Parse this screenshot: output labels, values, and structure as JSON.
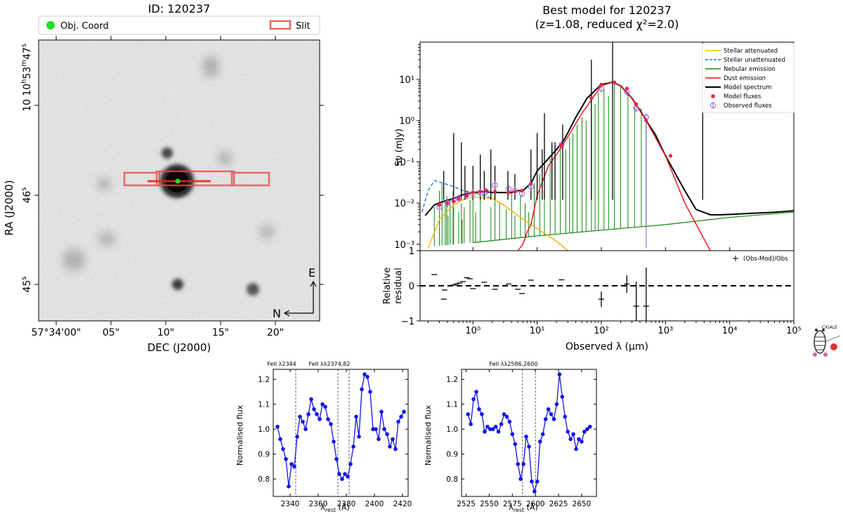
{
  "image_panel": {
    "title": "ID: 120237",
    "legend": {
      "object_label": "Obj. Coord",
      "slit_label": "Slit"
    },
    "y_label": "RA (J2000)",
    "x_label": "DEC (J2000)",
    "y_ticks": [
      {
        "base": "10",
        "sup1": "h",
        "mid": "53",
        "sup2": "m",
        "tail": "47",
        "sup3": "s"
      },
      {
        "base": "10",
        "sup1": "",
        "mid": "",
        "sup2": "",
        "tail": "",
        "sup3": ""
      },
      {
        "base": "46",
        "sup1": "s",
        "mid": "",
        "sup2": "",
        "tail": "",
        "sup3": ""
      },
      {
        "base": "45",
        "sup1": "s",
        "mid": "",
        "sup2": "",
        "tail": "",
        "sup3": ""
      }
    ],
    "x_ticks": [
      "57°34'00\"",
      "05\"",
      "10\"",
      "15\"",
      "20\""
    ],
    "compass": {
      "north": "N",
      "east": "E"
    },
    "colors": {
      "object": "#22dd22",
      "slit": "#e84a4a"
    }
  },
  "sed_panel": {
    "title_line1": "Best model for 120237",
    "title_line2": "(z=1.08, reduced χ²=2.0)",
    "y_label": "Sν (mJy)",
    "x_label": "Observed λ (μm)",
    "residual_label_line1": "Relative",
    "residual_label_line2": "residual",
    "residual_legend": "(Obs-Mod)/Obs",
    "legend": [
      {
        "label": "Stellar attenuated",
        "color": "#f5b800",
        "style": "solid"
      },
      {
        "label": "Stellar unattenuated",
        "color": "#1f77d4",
        "style": "dashed"
      },
      {
        "label": "Nebular emission",
        "color": "#118811",
        "style": "solid"
      },
      {
        "label": "Dust emission",
        "color": "#ee1111",
        "style": "solid"
      },
      {
        "label": "Model spectrum",
        "color": "#000000",
        "style": "solid"
      },
      {
        "label": "Model fluxes",
        "color": "#ee2244",
        "style": "dot"
      },
      {
        "label": "Observed fluxes",
        "color": "#9966cc",
        "style": "circle"
      }
    ],
    "y_ticks": [
      "10¹",
      "10⁰",
      "10⁻¹",
      "10⁻²",
      "10⁻³"
    ],
    "x_ticks": [
      "10⁰",
      "10¹",
      "10²",
      "10³",
      "10⁴",
      "10⁵"
    ],
    "residual_ticks": [
      "1",
      "0",
      "−1"
    ],
    "cigale_label": "CIGALE"
  },
  "chart_data": [
    {
      "type": "line",
      "title": "Best model for 120237 (z=1.08, reduced χ²=2.0)",
      "xlabel": "Observed λ (μm)",
      "ylabel": "Sν (mJy)",
      "xscale": "log",
      "yscale": "log",
      "xlim": [
        0.15,
        100000
      ],
      "ylim": [
        0.0007,
        80
      ],
      "series": [
        {
          "name": "Model spectrum",
          "x": [
            0.18,
            0.25,
            0.35,
            0.5,
            0.7,
            1.0,
            1.5,
            2,
            3,
            4,
            5,
            6,
            8,
            10,
            15,
            20,
            25,
            30,
            40,
            60,
            100,
            150,
            200,
            300,
            400,
            500,
            700,
            1000,
            1500,
            2000,
            3000,
            5000,
            7000,
            10000,
            20000,
            50000,
            100000
          ],
          "y": [
            0.005,
            0.009,
            0.011,
            0.013,
            0.016,
            0.018,
            0.019,
            0.018,
            0.018,
            0.018,
            0.02,
            0.02,
            0.03,
            0.06,
            0.12,
            0.2,
            0.3,
            0.5,
            1.2,
            3.5,
            7.5,
            8.5,
            7,
            3.5,
            1.8,
            1.0,
            0.45,
            0.14,
            0.045,
            0.02,
            0.007,
            0.0052,
            0.0052,
            0.0053,
            0.0056,
            0.006,
            0.0065
          ]
        },
        {
          "name": "Stellar unattenuated",
          "x": [
            0.16,
            0.2,
            0.25,
            0.35,
            0.5,
            0.7,
            1,
            2,
            3,
            5,
            8,
            12,
            20,
            30
          ],
          "y": [
            0.006,
            0.02,
            0.035,
            0.03,
            0.025,
            0.02,
            0.018,
            0.013,
            0.009,
            0.005,
            0.003,
            0.002,
            0.0012,
            0.0007
          ]
        },
        {
          "name": "Stellar attenuated",
          "x": [
            0.2,
            0.3,
            0.5,
            0.7,
            1,
            2,
            3,
            5,
            8,
            12,
            20,
            30
          ],
          "y": [
            0.0008,
            0.004,
            0.009,
            0.012,
            0.014,
            0.013,
            0.009,
            0.005,
            0.003,
            0.002,
            0.0012,
            0.0007
          ]
        },
        {
          "name": "Dust emission",
          "x": [
            5,
            6,
            7,
            8,
            10,
            15,
            20,
            30,
            50,
            100,
            150,
            200,
            300,
            500,
            1000,
            2000,
            5000
          ],
          "y": [
            0.0007,
            0.001,
            0.002,
            0.003,
            0.015,
            0.08,
            0.15,
            0.4,
            1.5,
            7,
            8.5,
            7,
            3.5,
            1.0,
            0.14,
            0.01,
            0.0007
          ]
        },
        {
          "name": "Nebular emission",
          "x": [
            1,
            10,
            100,
            1000,
            10000,
            100000
          ],
          "y": [
            0.0011,
            0.0016,
            0.0022,
            0.003,
            0.0045,
            0.006
          ]
        }
      ],
      "model_fluxes": {
        "x": [
          0.3,
          0.4,
          0.5,
          0.6,
          0.8,
          1.0,
          1.3,
          1.6,
          2.2,
          3.6,
          4.5,
          5.8,
          8,
          24,
          70,
          100,
          160,
          250,
          350,
          500,
          1200
        ],
        "y": [
          0.009,
          0.01,
          0.011,
          0.013,
          0.015,
          0.018,
          0.019,
          0.02,
          0.019,
          0.018,
          0.019,
          0.02,
          0.03,
          0.25,
          3.5,
          7.5,
          8.5,
          6,
          2.5,
          1.0,
          0.14
        ]
      },
      "observed_fluxes": {
        "x": [
          0.3,
          0.4,
          0.5,
          0.6,
          0.8,
          1.0,
          1.3,
          1.6,
          2.2,
          3.6,
          4.5,
          5.8,
          8,
          24,
          100,
          250,
          350,
          500
        ],
        "y": [
          0.008,
          0.01,
          0.012,
          0.013,
          0.016,
          0.017,
          0.018,
          0.019,
          0.027,
          0.022,
          0.02,
          0.017,
          0.025,
          0.26,
          6,
          5,
          2,
          1.2
        ]
      }
    },
    {
      "type": "scatter",
      "title": "Relative residual",
      "xlabel": "Observed λ (μm)",
      "ylabel": "Relative residual",
      "xscale": "log",
      "ylim": [
        -1,
        1
      ],
      "points": {
        "x": [
          0.25,
          0.35,
          0.36,
          0.5,
          0.55,
          0.62,
          0.7,
          0.8,
          0.9,
          1.0,
          1.5,
          2.2,
          3.6,
          4.5,
          5.0,
          5.8,
          8,
          24,
          100,
          250,
          350,
          500
        ],
        "y": [
          0.32,
          -0.38,
          -0.12,
          0.02,
          0.05,
          0.08,
          0.12,
          0.23,
          0.2,
          -0.08,
          0.1,
          -0.1,
          0.05,
          0.0,
          -0.1,
          -0.22,
          0.16,
          0.17,
          -0.38,
          0.05,
          -0.58,
          -0.58
        ],
        "yerr": [
          0,
          0,
          0,
          0,
          0,
          0,
          0,
          0,
          0,
          0,
          0,
          0,
          0,
          0,
          0,
          0,
          0,
          0,
          0.22,
          0.25,
          0.7,
          1.1
        ]
      },
      "legend": "(Obs-Mod)/Obs"
    },
    {
      "type": "line",
      "title": "FeII λ2344, FeII λλ2374,82",
      "xlabel": "λrest (Å)",
      "ylabel": "Normalised flux",
      "xlim": [
        2328,
        2424
      ],
      "ylim": [
        0.73,
        1.24
      ],
      "annotations": [
        {
          "label": "FeII λ2344",
          "x": 2344
        },
        {
          "label": "FeII λλ2374,82",
          "x": 2374
        },
        {
          "label": "",
          "x": 2382
        }
      ],
      "x": [
        2331,
        2333,
        2335,
        2337,
        2339,
        2341,
        2343,
        2345,
        2347,
        2349,
        2351,
        2353,
        2355,
        2357,
        2359,
        2361,
        2363,
        2365,
        2367,
        2369,
        2371,
        2373,
        2375,
        2377,
        2379,
        2381,
        2383,
        2385,
        2387,
        2389,
        2391,
        2393,
        2395,
        2397,
        2399,
        2401,
        2403,
        2405,
        2407,
        2409,
        2411,
        2413,
        2415,
        2417,
        2419,
        2421
      ],
      "y": [
        1.01,
        0.96,
        0.92,
        0.88,
        0.77,
        0.86,
        0.85,
        0.97,
        1.05,
        1.03,
        1.0,
        1.06,
        1.12,
        1.08,
        1.06,
        1.04,
        1.1,
        1.09,
        1.04,
        1.02,
        0.95,
        0.88,
        0.82,
        0.8,
        0.82,
        0.81,
        0.86,
        0.93,
        1.05,
        0.97,
        1.16,
        1.22,
        1.21,
        1.15,
        1.0,
        1.0,
        0.96,
        1.07,
        1.0,
        0.98,
        0.93,
        0.96,
        0.92,
        1.03,
        1.05,
        1.07
      ]
    },
    {
      "type": "line",
      "title": "FeII λλ2586,2600",
      "xlabel": "λrest (Å)",
      "ylabel": "Normalised flux",
      "xlim": [
        2520,
        2666
      ],
      "ylim": [
        0.73,
        1.24
      ],
      "annotations": [
        {
          "label": "FeII λλ2586,2600",
          "x": 2586
        },
        {
          "label": "",
          "x": 2600
        }
      ],
      "x": [
        2527,
        2530,
        2533,
        2536,
        2539,
        2542,
        2545,
        2548,
        2551,
        2554,
        2557,
        2560,
        2563,
        2566,
        2569,
        2572,
        2575,
        2578,
        2581,
        2584,
        2587,
        2590,
        2593,
        2596,
        2599,
        2602,
        2605,
        2608,
        2611,
        2614,
        2617,
        2620,
        2623,
        2626,
        2629,
        2632,
        2635,
        2638,
        2641,
        2644,
        2647,
        2650,
        2653,
        2656,
        2659
      ],
      "y": [
        1.06,
        1.02,
        1.12,
        1.15,
        1.08,
        1.06,
        0.99,
        1.01,
        1.0,
        1.0,
        1.01,
        0.99,
        1.02,
        1.06,
        1.05,
        1.03,
        0.98,
        0.94,
        0.86,
        0.8,
        0.86,
        0.97,
        0.93,
        0.79,
        0.75,
        0.79,
        0.95,
        0.98,
        1.04,
        1.08,
        1.06,
        1.04,
        1.1,
        1.22,
        1.13,
        1.05,
        0.99,
        0.96,
        0.98,
        0.92,
        0.96,
        0.95,
        0.99,
        1.0,
        1.01
      ]
    }
  ]
}
